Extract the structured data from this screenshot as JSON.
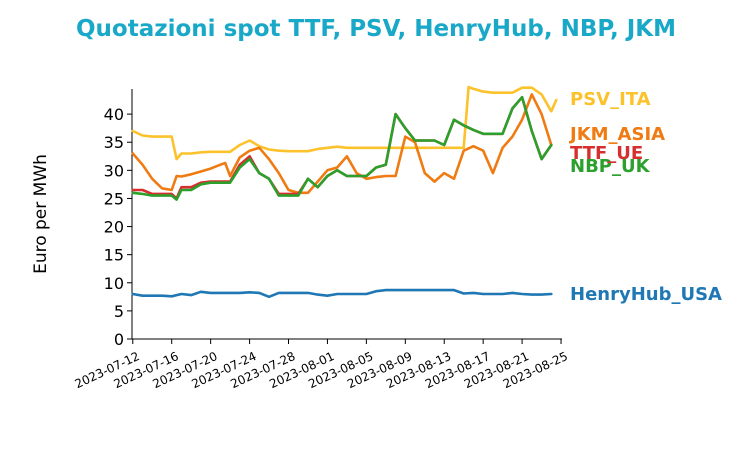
{
  "chart_data": {
    "type": "line",
    "title": "Quotazioni spot TTF, PSV, HenryHub, NBP, JKM",
    "ylabel": "Euro per MWh",
    "xlabel": "",
    "ylim": [
      0,
      45
    ],
    "yticks": [
      0,
      5,
      10,
      15,
      20,
      25,
      30,
      35,
      40
    ],
    "xlim": [
      "2023-07-12",
      "2023-08-25"
    ],
    "xticks": [
      "2023-07-12",
      "2023-07-16",
      "2023-07-20",
      "2023-07-24",
      "2023-07-28",
      "2023-08-01",
      "2023-08-05",
      "2023-08-09",
      "2023-08-13",
      "2023-08-17",
      "2023-08-21",
      "2023-08-25"
    ],
    "grid": false,
    "legend": "right, inline labels",
    "title_color": "#1aa8c8",
    "series": [
      {
        "name": "PSV_ITA",
        "color": "#fcc22c",
        "points": [
          [
            "2023-07-12",
            37.0
          ],
          [
            "2023-07-13",
            36.2
          ],
          [
            "2023-07-14",
            36.0
          ],
          [
            "2023-07-15",
            36.0
          ],
          [
            "2023-07-16",
            36.0
          ],
          [
            "2023-07-16T12",
            32.0
          ],
          [
            "2023-07-17",
            33.0
          ],
          [
            "2023-07-18",
            33.0
          ],
          [
            "2023-07-19",
            33.2
          ],
          [
            "2023-07-20",
            33.3
          ],
          [
            "2023-07-21",
            33.3
          ],
          [
            "2023-07-22",
            33.3
          ],
          [
            "2023-07-23",
            34.5
          ],
          [
            "2023-07-24",
            35.3
          ],
          [
            "2023-07-25",
            34.3
          ],
          [
            "2023-07-26",
            33.7
          ],
          [
            "2023-07-27",
            33.5
          ],
          [
            "2023-07-28",
            33.4
          ],
          [
            "2023-07-29",
            33.4
          ],
          [
            "2023-07-30",
            33.4
          ],
          [
            "2023-07-31",
            33.8
          ],
          [
            "2023-08-01",
            34.0
          ],
          [
            "2023-08-02",
            34.2
          ],
          [
            "2023-08-03",
            34.0
          ],
          [
            "2023-08-04",
            34.0
          ],
          [
            "2023-08-05",
            34.0
          ],
          [
            "2023-08-06",
            34.0
          ],
          [
            "2023-08-07",
            34.0
          ],
          [
            "2023-08-08",
            34.0
          ],
          [
            "2023-08-09",
            34.0
          ],
          [
            "2023-08-10",
            34.0
          ],
          [
            "2023-08-11",
            34.0
          ],
          [
            "2023-08-12",
            34.0
          ],
          [
            "2023-08-13",
            34.0
          ],
          [
            "2023-08-14",
            34.0
          ],
          [
            "2023-08-15",
            34.0
          ],
          [
            "2023-08-15T12",
            44.8
          ],
          [
            "2023-08-16",
            44.5
          ],
          [
            "2023-08-17",
            44.0
          ],
          [
            "2023-08-18",
            43.8
          ],
          [
            "2023-08-19",
            43.8
          ],
          [
            "2023-08-20",
            43.8
          ],
          [
            "2023-08-21",
            44.7
          ],
          [
            "2023-08-22",
            44.7
          ],
          [
            "2023-08-23",
            43.5
          ],
          [
            "2023-08-24",
            40.5
          ],
          [
            "2023-08-24T12",
            42.5
          ]
        ]
      },
      {
        "name": "JKM_ASIA",
        "color": "#ef7b12",
        "points": [
          [
            "2023-07-12",
            33.0
          ],
          [
            "2023-07-13",
            31.0
          ],
          [
            "2023-07-14",
            28.5
          ],
          [
            "2023-07-15",
            26.8
          ],
          [
            "2023-07-16",
            26.5
          ],
          [
            "2023-07-16T12",
            29.0
          ],
          [
            "2023-07-17",
            28.9
          ],
          [
            "2023-07-18",
            29.3
          ],
          [
            "2023-07-19",
            29.8
          ],
          [
            "2023-07-20",
            30.3
          ],
          [
            "2023-07-21",
            31.0
          ],
          [
            "2023-07-21T12",
            31.3
          ],
          [
            "2023-07-22",
            29.0
          ],
          [
            "2023-07-23",
            32.3
          ],
          [
            "2023-07-24",
            33.5
          ],
          [
            "2023-07-25",
            34.0
          ],
          [
            "2023-07-26",
            32.0
          ],
          [
            "2023-07-27",
            29.5
          ],
          [
            "2023-07-28",
            26.5
          ],
          [
            "2023-07-29",
            26.0
          ],
          [
            "2023-07-30",
            26.0
          ],
          [
            "2023-07-31",
            28.0
          ],
          [
            "2023-08-01",
            30.0
          ],
          [
            "2023-08-02",
            30.5
          ],
          [
            "2023-08-03",
            32.5
          ],
          [
            "2023-08-04",
            29.5
          ],
          [
            "2023-08-05",
            28.5
          ],
          [
            "2023-08-06",
            28.8
          ],
          [
            "2023-08-07",
            29.0
          ],
          [
            "2023-08-08",
            29.0
          ],
          [
            "2023-08-09",
            36.0
          ],
          [
            "2023-08-10",
            35.0
          ],
          [
            "2023-08-11",
            29.5
          ],
          [
            "2023-08-12",
            28.0
          ],
          [
            "2023-08-13",
            29.5
          ],
          [
            "2023-08-14",
            28.5
          ],
          [
            "2023-08-15",
            33.5
          ],
          [
            "2023-08-16",
            34.3
          ],
          [
            "2023-08-17",
            33.5
          ],
          [
            "2023-08-18",
            29.5
          ],
          [
            "2023-08-19",
            34.0
          ],
          [
            "2023-08-20",
            36.0
          ],
          [
            "2023-08-21",
            39.0
          ],
          [
            "2023-08-22",
            43.5
          ],
          [
            "2023-08-23",
            40.0
          ],
          [
            "2023-08-24",
            34.5
          ]
        ]
      },
      {
        "name": "TTF_UE",
        "color": "#d62f2f",
        "points": [
          [
            "2023-07-12",
            26.5
          ],
          [
            "2023-07-13",
            26.5
          ],
          [
            "2023-07-14",
            25.8
          ],
          [
            "2023-07-15",
            25.8
          ],
          [
            "2023-07-16",
            25.8
          ],
          [
            "2023-07-16T12",
            25.0
          ],
          [
            "2023-07-17",
            27.0
          ],
          [
            "2023-07-18",
            27.0
          ],
          [
            "2023-07-19",
            27.8
          ],
          [
            "2023-07-20",
            28.0
          ],
          [
            "2023-07-21",
            28.0
          ],
          [
            "2023-07-22",
            28.0
          ],
          [
            "2023-07-23",
            31.0
          ],
          [
            "2023-07-24",
            32.5
          ],
          [
            "2023-07-25",
            29.5
          ],
          [
            "2023-07-26",
            28.5
          ],
          [
            "2023-07-27",
            25.8
          ],
          [
            "2023-07-28",
            25.8
          ],
          [
            "2023-07-29",
            25.8
          ],
          [
            "2023-07-30",
            28.5
          ],
          [
            "2023-07-31",
            27.0
          ],
          [
            "2023-08-01",
            29.0
          ],
          [
            "2023-08-02",
            30.0
          ],
          [
            "2023-08-03",
            29.0
          ],
          [
            "2023-08-04",
            29.0
          ],
          [
            "2023-08-05",
            29.0
          ],
          [
            "2023-08-06",
            30.5
          ],
          [
            "2023-08-07",
            31.0
          ],
          [
            "2023-08-08",
            40.0
          ],
          [
            "2023-08-09",
            37.5
          ],
          [
            "2023-08-10",
            35.3
          ],
          [
            "2023-08-11",
            35.3
          ],
          [
            "2023-08-12",
            35.3
          ],
          [
            "2023-08-13",
            34.5
          ],
          [
            "2023-08-14",
            39.0
          ],
          [
            "2023-08-15",
            38.0
          ],
          [
            "2023-08-16",
            37.2
          ],
          [
            "2023-08-17",
            36.5
          ],
          [
            "2023-08-18",
            36.5
          ],
          [
            "2023-08-19",
            36.5
          ],
          [
            "2023-08-20",
            41.0
          ],
          [
            "2023-08-21",
            43.0
          ],
          [
            "2023-08-22",
            37.0
          ],
          [
            "2023-08-23",
            32.0
          ],
          [
            "2023-08-24",
            34.5
          ]
        ]
      },
      {
        "name": "NBP_UK",
        "color": "#2ca02c",
        "points": [
          [
            "2023-07-12",
            26.0
          ],
          [
            "2023-07-13",
            25.8
          ],
          [
            "2023-07-14",
            25.5
          ],
          [
            "2023-07-15",
            25.5
          ],
          [
            "2023-07-16",
            25.5
          ],
          [
            "2023-07-16T12",
            24.8
          ],
          [
            "2023-07-17",
            26.5
          ],
          [
            "2023-07-18",
            26.5
          ],
          [
            "2023-07-19",
            27.5
          ],
          [
            "2023-07-20",
            27.8
          ],
          [
            "2023-07-21",
            27.8
          ],
          [
            "2023-07-22",
            27.8
          ],
          [
            "2023-07-23",
            30.5
          ],
          [
            "2023-07-24",
            32.0
          ],
          [
            "2023-07-25",
            29.5
          ],
          [
            "2023-07-26",
            28.5
          ],
          [
            "2023-07-27",
            25.5
          ],
          [
            "2023-07-28",
            25.5
          ],
          [
            "2023-07-29",
            25.5
          ],
          [
            "2023-07-30",
            28.5
          ],
          [
            "2023-07-31",
            27.0
          ],
          [
            "2023-08-01",
            29.0
          ],
          [
            "2023-08-02",
            30.0
          ],
          [
            "2023-08-03",
            29.0
          ],
          [
            "2023-08-04",
            29.0
          ],
          [
            "2023-08-05",
            29.0
          ],
          [
            "2023-08-06",
            30.5
          ],
          [
            "2023-08-07",
            31.0
          ],
          [
            "2023-08-08",
            40.0
          ],
          [
            "2023-08-09",
            37.5
          ],
          [
            "2023-08-10",
            35.3
          ],
          [
            "2023-08-11",
            35.3
          ],
          [
            "2023-08-12",
            35.3
          ],
          [
            "2023-08-13",
            34.5
          ],
          [
            "2023-08-14",
            39.0
          ],
          [
            "2023-08-15",
            38.0
          ],
          [
            "2023-08-16",
            37.2
          ],
          [
            "2023-08-17",
            36.5
          ],
          [
            "2023-08-18",
            36.5
          ],
          [
            "2023-08-19",
            36.5
          ],
          [
            "2023-08-20",
            41.0
          ],
          [
            "2023-08-21",
            43.0
          ],
          [
            "2023-08-22",
            37.0
          ],
          [
            "2023-08-23",
            32.0
          ],
          [
            "2023-08-24",
            34.5
          ]
        ]
      },
      {
        "name": "HenryHub_USA",
        "color": "#1f77b4",
        "points": [
          [
            "2023-07-12",
            8.0
          ],
          [
            "2023-07-13",
            7.7
          ],
          [
            "2023-07-14",
            7.7
          ],
          [
            "2023-07-15",
            7.7
          ],
          [
            "2023-07-16",
            7.6
          ],
          [
            "2023-07-17",
            8.0
          ],
          [
            "2023-07-18",
            7.8
          ],
          [
            "2023-07-19",
            8.4
          ],
          [
            "2023-07-20",
            8.2
          ],
          [
            "2023-07-21",
            8.2
          ],
          [
            "2023-07-22",
            8.2
          ],
          [
            "2023-07-23",
            8.2
          ],
          [
            "2023-07-24",
            8.3
          ],
          [
            "2023-07-25",
            8.2
          ],
          [
            "2023-07-26",
            7.5
          ],
          [
            "2023-07-27",
            8.2
          ],
          [
            "2023-07-28",
            8.2
          ],
          [
            "2023-07-29",
            8.2
          ],
          [
            "2023-07-30",
            8.2
          ],
          [
            "2023-07-31",
            7.9
          ],
          [
            "2023-08-01",
            7.7
          ],
          [
            "2023-08-02",
            8.0
          ],
          [
            "2023-08-03",
            8.0
          ],
          [
            "2023-08-04",
            8.0
          ],
          [
            "2023-08-05",
            8.0
          ],
          [
            "2023-08-06",
            8.5
          ],
          [
            "2023-08-07",
            8.7
          ],
          [
            "2023-08-08",
            8.7
          ],
          [
            "2023-08-09",
            8.7
          ],
          [
            "2023-08-10",
            8.7
          ],
          [
            "2023-08-11",
            8.7
          ],
          [
            "2023-08-12",
            8.7
          ],
          [
            "2023-08-13",
            8.7
          ],
          [
            "2023-08-14",
            8.7
          ],
          [
            "2023-08-15",
            8.1
          ],
          [
            "2023-08-16",
            8.2
          ],
          [
            "2023-08-17",
            8.0
          ],
          [
            "2023-08-18",
            8.0
          ],
          [
            "2023-08-19",
            8.0
          ],
          [
            "2023-08-20",
            8.2
          ],
          [
            "2023-08-21",
            8.0
          ],
          [
            "2023-08-22",
            7.9
          ],
          [
            "2023-08-23",
            7.9
          ],
          [
            "2023-08-24",
            8.0
          ]
        ]
      }
    ]
  }
}
